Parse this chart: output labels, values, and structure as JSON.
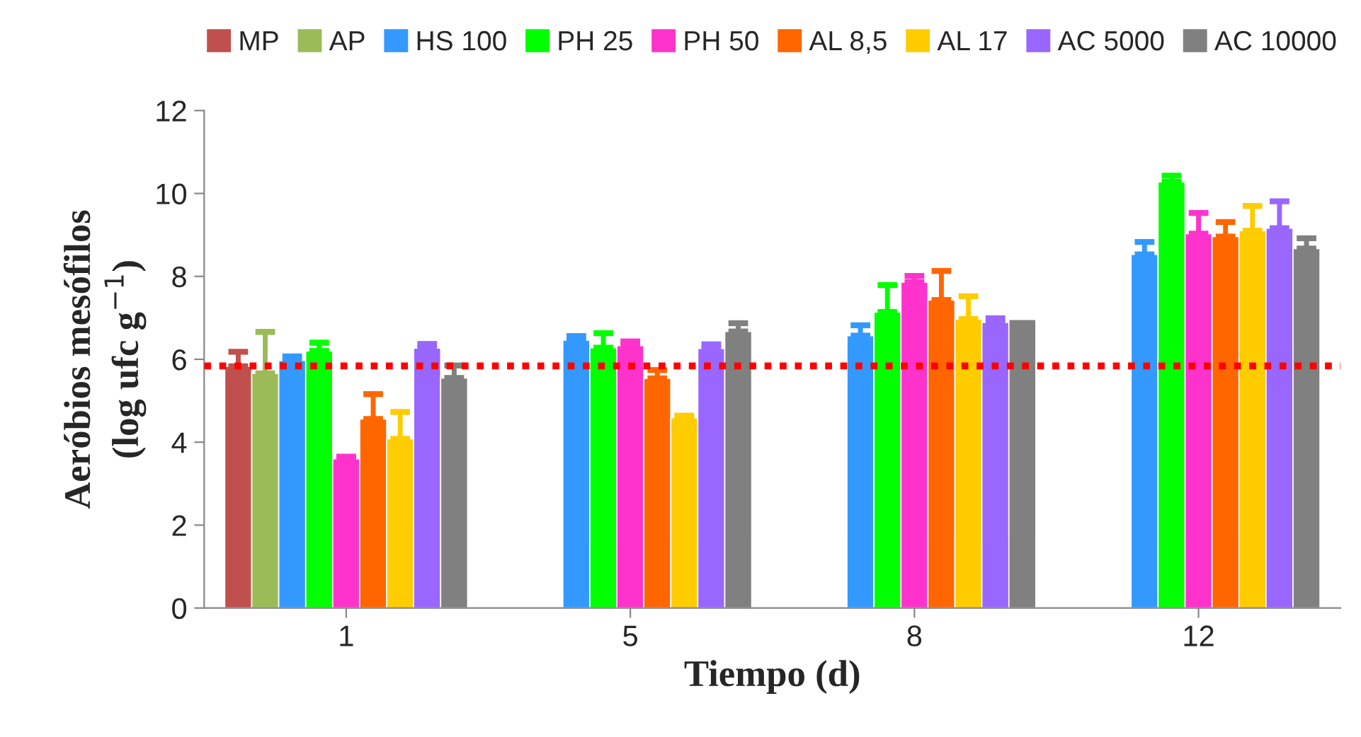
{
  "chart_data": {
    "type": "bar",
    "xlabel": "Tiempo (d)",
    "ylabel": "Aeróbios mesófilos\n(log ufc g$^{−1}$)",
    "categories": [
      "1",
      "5",
      "8",
      "12"
    ],
    "ylim": [
      0,
      12
    ],
    "yticks": [
      0,
      2,
      4,
      6,
      8,
      10,
      12
    ],
    "grid": false,
    "legend": "top",
    "series": [
      {
        "name": "MP",
        "color": "#c0504d",
        "values": [
          5.83,
          null,
          null,
          null
        ],
        "errors": [
          0.35,
          null,
          null,
          null
        ]
      },
      {
        "name": "AP",
        "color": "#9bbb59",
        "values": [
          5.66,
          null,
          null,
          null
        ],
        "errors": [
          1.0,
          null,
          null,
          null
        ]
      },
      {
        "name": "HS 100",
        "color": "#3399ff",
        "values": [
          5.97,
          6.46,
          6.57,
          8.53
        ],
        "errors": [
          0.1,
          0.1,
          0.25,
          0.3
        ]
      },
      {
        "name": "PH 25",
        "color": "#00ff00",
        "values": [
          6.2,
          6.28,
          7.14,
          10.28
        ],
        "errors": [
          0.2,
          0.35,
          0.65,
          0.15
        ]
      },
      {
        "name": "PH 50",
        "color": "#ff33cc",
        "values": [
          3.6,
          6.33,
          7.86,
          9.03
        ],
        "errors": [
          0.05,
          0.1,
          0.15,
          0.5
        ]
      },
      {
        "name": "AL 8,5",
        "color": "#ff6600",
        "values": [
          4.56,
          5.54,
          7.43,
          8.96
        ],
        "errors": [
          0.6,
          0.2,
          0.7,
          0.35
        ]
      },
      {
        "name": "AL 17",
        "color": "#ffcc00",
        "values": [
          4.08,
          4.59,
          6.97,
          9.1
        ],
        "errors": [
          0.65,
          0.05,
          0.55,
          0.6
        ]
      },
      {
        "name": "AC 5000",
        "color": "#9966ff",
        "values": [
          6.27,
          6.26,
          6.89,
          9.16
        ],
        "errors": [
          0.1,
          0.1,
          0.1,
          0.65
        ]
      },
      {
        "name": "AC 10000",
        "color": "#808080",
        "values": [
          5.55,
          6.67,
          6.96,
          8.67
        ],
        "errors": [
          0.3,
          0.2,
          null,
          0.25
        ]
      }
    ],
    "ref_lines": [
      {
        "axis": "y",
        "value": 5.84,
        "color": "#ff0000",
        "line_style": "dotted"
      }
    ]
  }
}
